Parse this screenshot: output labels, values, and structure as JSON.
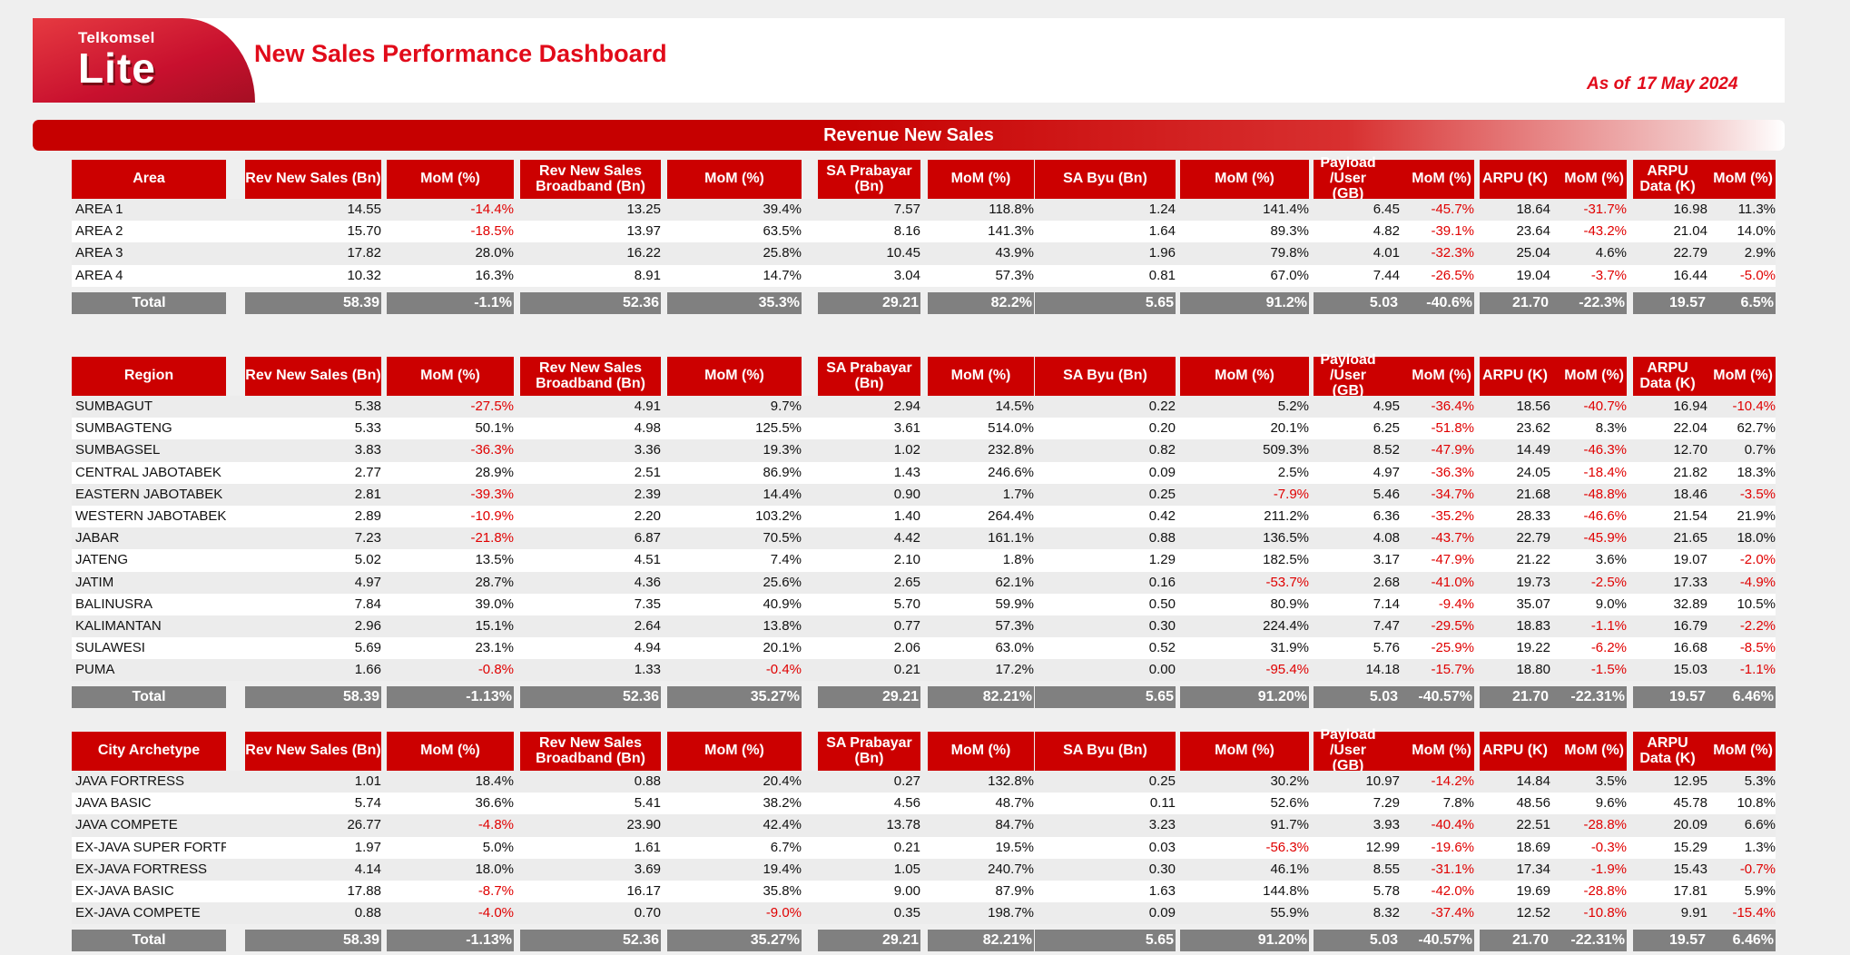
{
  "header": {
    "brand": "Telkomsel",
    "logo_text": "Lite",
    "title": "New Sales Performance Dashboard",
    "as_of_label": "As of",
    "as_of_date": "17 May 2024"
  },
  "banner": "Revenue New Sales",
  "columns": [
    "Rev New Sales (Bn)",
    "MoM (%)",
    "Rev New Sales Broadband (Bn)",
    "MoM (%)",
    "SA Prabayar (Bn)",
    "MoM (%)",
    "SA Byu (Bn)",
    "MoM (%)",
    "Payload /User (GB)",
    "MoM (%)",
    "ARPU (K)",
    "MoM (%)",
    "ARPU Data (K)",
    "MoM (%)"
  ],
  "tables": [
    {
      "label": "Area",
      "rows": [
        [
          "AREA 1",
          "14.55",
          "-14.4%",
          "13.25",
          "39.4%",
          "7.57",
          "118.8%",
          "1.24",
          "141.4%",
          "6.45",
          "-45.7%",
          "18.64",
          "-31.7%",
          "16.98",
          "11.3%"
        ],
        [
          "AREA 2",
          "15.70",
          "-18.5%",
          "13.97",
          "63.5%",
          "8.16",
          "141.3%",
          "1.64",
          "89.3%",
          "4.82",
          "-39.1%",
          "23.64",
          "-43.2%",
          "21.04",
          "14.0%"
        ],
        [
          "AREA 3",
          "17.82",
          "28.0%",
          "16.22",
          "25.8%",
          "10.45",
          "43.9%",
          "1.96",
          "79.8%",
          "4.01",
          "-32.3%",
          "25.04",
          "4.6%",
          "22.79",
          "2.9%"
        ],
        [
          "AREA 4",
          "10.32",
          "16.3%",
          "8.91",
          "14.7%",
          "3.04",
          "57.3%",
          "0.81",
          "67.0%",
          "7.44",
          "-26.5%",
          "19.04",
          "-3.7%",
          "16.44",
          "-5.0%"
        ]
      ],
      "total": [
        "Total",
        "58.39",
        "-1.1%",
        "52.36",
        "35.3%",
        "29.21",
        "82.2%",
        "5.65",
        "91.2%",
        "5.03",
        "-40.6%",
        "21.70",
        "-22.3%",
        "19.57",
        "6.5%"
      ]
    },
    {
      "label": "Region",
      "rows": [
        [
          "SUMBAGUT",
          "5.38",
          "-27.5%",
          "4.91",
          "9.7%",
          "2.94",
          "14.5%",
          "0.22",
          "5.2%",
          "4.95",
          "-36.4%",
          "18.56",
          "-40.7%",
          "16.94",
          "-10.4%"
        ],
        [
          "SUMBAGTENG",
          "5.33",
          "50.1%",
          "4.98",
          "125.5%",
          "3.61",
          "514.0%",
          "0.20",
          "20.1%",
          "6.25",
          "-51.8%",
          "23.62",
          "8.3%",
          "22.04",
          "62.7%"
        ],
        [
          "SUMBAGSEL",
          "3.83",
          "-36.3%",
          "3.36",
          "19.3%",
          "1.02",
          "232.8%",
          "0.82",
          "509.3%",
          "8.52",
          "-47.9%",
          "14.49",
          "-46.3%",
          "12.70",
          "0.7%"
        ],
        [
          "CENTRAL JABOTABEK",
          "2.77",
          "28.9%",
          "2.51",
          "86.9%",
          "1.43",
          "246.6%",
          "0.09",
          "2.5%",
          "4.97",
          "-36.3%",
          "24.05",
          "-18.4%",
          "21.82",
          "18.3%"
        ],
        [
          "EASTERN JABOTABEK",
          "2.81",
          "-39.3%",
          "2.39",
          "14.4%",
          "0.90",
          "1.7%",
          "0.25",
          "-7.9%",
          "5.46",
          "-34.7%",
          "21.68",
          "-48.8%",
          "18.46",
          "-3.5%"
        ],
        [
          "WESTERN JABOTABEK",
          "2.89",
          "-10.9%",
          "2.20",
          "103.2%",
          "1.40",
          "264.4%",
          "0.42",
          "211.2%",
          "6.36",
          "-35.2%",
          "28.33",
          "-46.6%",
          "21.54",
          "21.9%"
        ],
        [
          "JABAR",
          "7.23",
          "-21.8%",
          "6.87",
          "70.5%",
          "4.42",
          "161.1%",
          "0.88",
          "136.5%",
          "4.08",
          "-43.7%",
          "22.79",
          "-45.9%",
          "21.65",
          "18.0%"
        ],
        [
          "JATENG",
          "5.02",
          "13.5%",
          "4.51",
          "7.4%",
          "2.10",
          "1.8%",
          "1.29",
          "182.5%",
          "3.17",
          "-47.9%",
          "21.22",
          "3.6%",
          "19.07",
          "-2.0%"
        ],
        [
          "JATIM",
          "4.97",
          "28.7%",
          "4.36",
          "25.6%",
          "2.65",
          "62.1%",
          "0.16",
          "-53.7%",
          "2.68",
          "-41.0%",
          "19.73",
          "-2.5%",
          "17.33",
          "-4.9%"
        ],
        [
          "BALINUSRA",
          "7.84",
          "39.0%",
          "7.35",
          "40.9%",
          "5.70",
          "59.9%",
          "0.50",
          "80.9%",
          "7.14",
          "-9.4%",
          "35.07",
          "9.0%",
          "32.89",
          "10.5%"
        ],
        [
          "KALIMANTAN",
          "2.96",
          "15.1%",
          "2.64",
          "13.8%",
          "0.77",
          "57.3%",
          "0.30",
          "224.4%",
          "7.47",
          "-29.5%",
          "18.83",
          "-1.1%",
          "16.79",
          "-2.2%"
        ],
        [
          "SULAWESI",
          "5.69",
          "23.1%",
          "4.94",
          "20.1%",
          "2.06",
          "63.0%",
          "0.52",
          "31.9%",
          "5.76",
          "-25.9%",
          "19.22",
          "-6.2%",
          "16.68",
          "-8.5%"
        ],
        [
          "PUMA",
          "1.66",
          "-0.8%",
          "1.33",
          "-0.4%",
          "0.21",
          "17.2%",
          "0.00",
          "-95.4%",
          "14.18",
          "-15.7%",
          "18.80",
          "-1.5%",
          "15.03",
          "-1.1%"
        ]
      ],
      "total": [
        "Total",
        "58.39",
        "-1.13%",
        "52.36",
        "35.27%",
        "29.21",
        "82.21%",
        "5.65",
        "91.20%",
        "5.03",
        "-40.57%",
        "21.70",
        "-22.31%",
        "19.57",
        "6.46%"
      ]
    },
    {
      "label": "City Archetype",
      "rows": [
        [
          "JAVA FORTRESS",
          "1.01",
          "18.4%",
          "0.88",
          "20.4%",
          "0.27",
          "132.8%",
          "0.25",
          "30.2%",
          "10.97",
          "-14.2%",
          "14.84",
          "3.5%",
          "12.95",
          "5.3%"
        ],
        [
          "JAVA BASIC",
          "5.74",
          "36.6%",
          "5.41",
          "38.2%",
          "4.56",
          "48.7%",
          "0.11",
          "52.6%",
          "7.29",
          "7.8%",
          "48.56",
          "9.6%",
          "45.78",
          "10.8%"
        ],
        [
          "JAVA COMPETE",
          "26.77",
          "-4.8%",
          "23.90",
          "42.4%",
          "13.78",
          "84.7%",
          "3.23",
          "91.7%",
          "3.93",
          "-40.4%",
          "22.51",
          "-28.8%",
          "20.09",
          "6.6%"
        ],
        [
          "EX-JAVA SUPER FORTRESS",
          "1.97",
          "5.0%",
          "1.61",
          "6.7%",
          "0.21",
          "19.5%",
          "0.03",
          "-56.3%",
          "12.99",
          "-19.6%",
          "18.69",
          "-0.3%",
          "15.29",
          "1.3%"
        ],
        [
          "EX-JAVA FORTRESS",
          "4.14",
          "18.0%",
          "3.69",
          "19.4%",
          "1.05",
          "240.7%",
          "0.30",
          "46.1%",
          "8.55",
          "-31.1%",
          "17.34",
          "-1.9%",
          "15.43",
          "-0.7%"
        ],
        [
          "EX-JAVA BASIC",
          "17.88",
          "-8.7%",
          "16.17",
          "35.8%",
          "9.00",
          "87.9%",
          "1.63",
          "144.8%",
          "5.78",
          "-42.0%",
          "19.69",
          "-28.8%",
          "17.81",
          "5.9%"
        ],
        [
          "EX-JAVA COMPETE",
          "0.88",
          "-4.0%",
          "0.70",
          "-9.0%",
          "0.35",
          "198.7%",
          "0.09",
          "55.9%",
          "8.32",
          "-37.4%",
          "12.52",
          "-10.8%",
          "9.91",
          "-15.4%"
        ]
      ],
      "total": [
        "Total",
        "58.39",
        "-1.13%",
        "52.36",
        "35.27%",
        "29.21",
        "82.21%",
        "5.65",
        "91.20%",
        "5.03",
        "-40.57%",
        "21.70",
        "-22.31%",
        "19.57",
        "6.46%"
      ]
    }
  ],
  "colors": {
    "header_red": "#cc0000",
    "negative": "#e00000",
    "total_gray": "#808080",
    "title_red": "#e10b1a"
  }
}
